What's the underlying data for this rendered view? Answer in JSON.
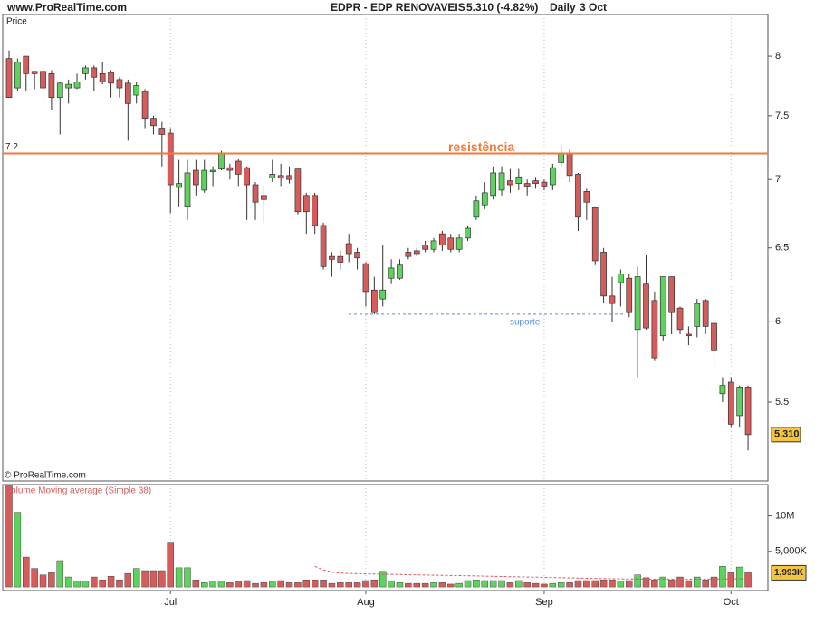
{
  "chart_data": [
    {
      "type": "candlestick",
      "source": "www.ProRealTime.com",
      "title": "EDPR - EDP RENOVAVEIS",
      "subtitle": "5.310 (-4.82%)",
      "period": "Daily",
      "date": "3 Oct",
      "y_label": "Price",
      "copyright": "© ProRealTime.com",
      "log_scale": true,
      "ylim": [
        5.05,
        8.37
      ],
      "yticks": [
        5.5,
        6,
        6.5,
        7,
        7.5,
        8
      ],
      "up_color": "#5dd35d",
      "down_color": "#d65c5c",
      "categories": [
        null,
        null,
        null,
        null,
        null,
        null,
        null,
        null,
        null,
        null,
        null,
        null,
        null,
        null,
        null,
        null,
        null,
        null,
        null,
        "Jul",
        null,
        null,
        null,
        null,
        null,
        null,
        null,
        null,
        null,
        null,
        null,
        null,
        null,
        null,
        null,
        null,
        null,
        null,
        null,
        null,
        null,
        null,
        "Aug",
        null,
        null,
        null,
        null,
        null,
        null,
        null,
        null,
        null,
        null,
        null,
        null,
        null,
        null,
        null,
        null,
        null,
        null,
        null,
        null,
        "Sep",
        null,
        null,
        null,
        null,
        null,
        null,
        null,
        null,
        null,
        null,
        null,
        null,
        null,
        null,
        null,
        null,
        null,
        null,
        null,
        null,
        null,
        "Oct",
        null,
        null
      ],
      "open": [
        7.98,
        7.73,
        8.0,
        7.87,
        7.87,
        7.85,
        7.65,
        7.73,
        7.73,
        7.85,
        7.9,
        7.85,
        7.86,
        7.8,
        7.77,
        7.67,
        7.7,
        7.48,
        7.4,
        7.36,
        6.94,
        6.8,
        7.07,
        6.92,
        7.06,
        7.08,
        7.09,
        7.14,
        7.09,
        6.96,
        6.88,
        7.01,
        7.03,
        7.03,
        7.08,
        6.88,
        6.88,
        6.66,
        6.44,
        6.44,
        6.53,
        6.47,
        6.39,
        6.21,
        6.15,
        6.29,
        6.29,
        6.47,
        6.48,
        6.52,
        6.49,
        6.6,
        6.57,
        6.49,
        6.57,
        6.72,
        6.81,
        6.88,
        6.92,
        6.99,
        6.97,
        6.97,
        6.99,
        6.98,
        6.96,
        7.13,
        7.2,
        7.04,
        6.91,
        6.79,
        6.47,
        6.17,
        6.26,
        6.29,
        5.95,
        6.25,
        6.14,
        5.91,
        6.3,
        6.09,
        5.92,
        5.97,
        6.14,
        5.99,
        5.55,
        5.62,
        5.42,
        5.59
      ],
      "high": [
        8.05,
        7.98,
        8.0,
        7.87,
        7.9,
        7.88,
        7.78,
        7.8,
        7.85,
        7.92,
        7.92,
        7.95,
        7.88,
        7.82,
        7.8,
        7.78,
        7.72,
        7.5,
        7.45,
        7.4,
        7.15,
        7.15,
        7.15,
        7.15,
        7.1,
        7.22,
        7.12,
        7.16,
        7.1,
        6.98,
        6.95,
        7.15,
        7.12,
        7.1,
        7.08,
        6.9,
        6.9,
        6.68,
        6.47,
        6.48,
        6.6,
        6.5,
        6.4,
        6.3,
        6.52,
        6.42,
        6.42,
        6.5,
        6.5,
        6.55,
        6.57,
        6.62,
        6.6,
        6.6,
        6.66,
        6.88,
        6.98,
        7.1,
        7.1,
        7.08,
        7.08,
        7.0,
        7.02,
        7.0,
        7.12,
        7.26,
        7.23,
        7.05,
        6.93,
        6.8,
        6.5,
        6.3,
        6.35,
        6.32,
        6.37,
        6.45,
        6.2,
        6.3,
        6.3,
        6.1,
        5.97,
        6.15,
        6.15,
        6.02,
        5.65,
        5.65,
        5.6,
        5.6
      ],
      "low": [
        7.65,
        7.7,
        7.7,
        7.72,
        7.6,
        7.55,
        7.35,
        7.6,
        7.72,
        7.8,
        7.7,
        7.76,
        7.65,
        7.65,
        7.3,
        7.6,
        7.4,
        7.35,
        7.1,
        6.75,
        6.8,
        6.7,
        6.88,
        6.9,
        6.95,
        7.07,
        7.0,
        6.95,
        6.7,
        6.7,
        6.68,
        6.98,
        6.95,
        6.97,
        6.74,
        6.6,
        6.6,
        6.35,
        6.3,
        6.35,
        6.4,
        6.35,
        6.1,
        6.05,
        6.1,
        6.25,
        6.28,
        6.42,
        6.44,
        6.47,
        6.47,
        6.48,
        6.47,
        6.47,
        6.55,
        6.7,
        6.78,
        6.85,
        6.88,
        6.9,
        6.92,
        6.88,
        6.93,
        6.92,
        6.92,
        7.1,
        6.98,
        6.62,
        6.7,
        6.38,
        6.12,
        6.0,
        6.1,
        6.03,
        5.65,
        5.95,
        5.75,
        5.88,
        5.92,
        5.92,
        5.85,
        5.9,
        5.92,
        5.72,
        5.5,
        5.35,
        5.35,
        5.22
      ],
      "close": [
        7.65,
        7.95,
        7.85,
        7.85,
        7.73,
        7.65,
        7.77,
        7.76,
        7.78,
        7.9,
        7.82,
        7.78,
        7.77,
        7.73,
        7.6,
        7.75,
        7.48,
        7.42,
        7.35,
        6.96,
        6.97,
        7.05,
        6.96,
        7.07,
        7.07,
        7.2,
        7.07,
        7.04,
        6.96,
        6.83,
        6.85,
        7.04,
        7.01,
        7.0,
        6.76,
        6.76,
        6.66,
        6.37,
        6.42,
        6.4,
        6.46,
        6.43,
        6.2,
        6.06,
        6.21,
        6.36,
        6.38,
        6.44,
        6.46,
        6.49,
        6.55,
        6.52,
        6.49,
        6.57,
        6.64,
        6.84,
        6.9,
        7.05,
        7.05,
        6.96,
        7.02,
        6.95,
        6.97,
        6.95,
        7.09,
        7.2,
        7.03,
        6.72,
        6.83,
        6.41,
        6.17,
        6.12,
        6.32,
        6.06,
        6.3,
        5.96,
        5.77,
        6.3,
        6.06,
        5.95,
        5.91,
        6.12,
        5.97,
        5.82,
        5.6,
        5.37,
        5.59,
        5.31
      ],
      "last_label": "5.310",
      "last_label_color": "#f5c542",
      "resistance": {
        "value": 7.2,
        "label": "7.2",
        "text": "resistência",
        "color": "#f07a3a"
      },
      "support": {
        "value": 6.05,
        "text": "suporte",
        "color": "#5a8ee0"
      }
    },
    {
      "type": "bar",
      "title": "Volume Moving average (Simple 38)",
      "ylim": [
        -0.5,
        14.4
      ],
      "yticks": [
        {
          "value": 10,
          "label": "10M"
        },
        {
          "value": 5,
          "label": "5,000K"
        }
      ],
      "values": [
        15,
        10.5,
        4.2,
        2.6,
        1.7,
        2.0,
        3.7,
        1.4,
        0.8,
        0.8,
        1.4,
        1.0,
        1.5,
        1.0,
        1.9,
        2.6,
        2.3,
        2.3,
        2.3,
        6.3,
        2.7,
        2.7,
        1.0,
        0.6,
        0.8,
        0.8,
        0.6,
        0.8,
        0.9,
        0.5,
        0.6,
        0.8,
        0.9,
        0.6,
        0.6,
        1.0,
        1.0,
        1.0,
        0.5,
        0.6,
        0.6,
        0.6,
        0.9,
        1.0,
        2.2,
        0.8,
        0.6,
        0.5,
        0.5,
        0.5,
        0.6,
        0.6,
        0.4,
        0.5,
        0.9,
        1.0,
        0.9,
        0.9,
        0.9,
        0.6,
        0.9,
        0.6,
        0.5,
        0.4,
        0.5,
        0.6,
        0.6,
        0.9,
        0.9,
        0.9,
        1.0,
        1.0,
        0.8,
        0.9,
        1.7,
        1.3,
        1.0,
        1.4,
        1.0,
        1.4,
        0.9,
        1.4,
        1.0,
        1.4,
        2.9,
        2.0,
        2.8,
        1.993
      ],
      "ma_values": [
        null,
        null,
        null,
        null,
        null,
        null,
        null,
        null,
        null,
        null,
        null,
        null,
        null,
        null,
        null,
        null,
        null,
        null,
        null,
        null,
        null,
        null,
        null,
        null,
        null,
        null,
        null,
        null,
        null,
        null,
        null,
        null,
        null,
        null,
        null,
        null,
        2.9,
        2.4,
        2.1,
        1.95,
        1.9,
        1.88,
        1.85,
        1.82,
        1.8,
        1.78,
        1.75,
        1.72,
        1.7,
        1.68,
        1.66,
        1.64,
        1.62,
        1.6,
        1.58,
        1.55,
        1.52,
        1.5,
        1.48,
        1.45,
        1.42,
        1.4,
        1.38,
        1.35,
        1.32,
        1.3,
        1.28,
        1.25,
        1.22,
        1.2,
        1.18,
        1.16,
        1.14,
        1.12,
        1.1,
        1.1,
        1.1,
        1.1,
        1.1,
        1.1,
        1.1,
        1.1,
        1.1,
        1.12,
        1.12,
        1.13,
        1.14,
        1.15
      ],
      "ma_color": "#d65c5c",
      "last_label": "1,993K",
      "last_label_color": "#f5c542"
    }
  ]
}
